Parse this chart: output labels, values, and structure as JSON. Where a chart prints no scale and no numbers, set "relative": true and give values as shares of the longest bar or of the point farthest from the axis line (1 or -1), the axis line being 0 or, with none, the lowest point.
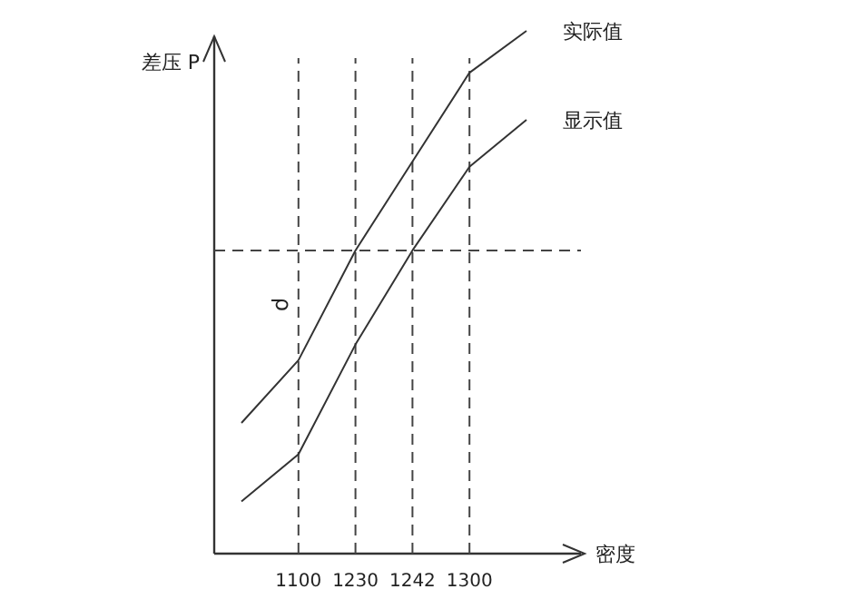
{
  "chart_data": {
    "type": "line",
    "relative": true,
    "xlabel": "密度",
    "ylabel": "差压 P",
    "categories": [
      null,
      "1100",
      "1230",
      "1242",
      "1300",
      null
    ],
    "series": [
      {
        "name": "实际值",
        "color": "#333333",
        "values": [
          0.25,
          0.37,
          0.58,
          0.75,
          0.92,
          1.0
        ]
      },
      {
        "name": "显示值",
        "color": "#333333",
        "values": [
          0.1,
          0.19,
          0.4,
          0.58,
          0.74,
          0.83
        ]
      }
    ],
    "ref_lines": [
      {
        "axis": "y",
        "value": 0.58,
        "line_style": "dashed"
      },
      {
        "axis": "x",
        "value": "1100",
        "line_style": "dashed"
      },
      {
        "axis": "x",
        "value": "1230",
        "line_style": "dashed"
      },
      {
        "axis": "x",
        "value": "1242",
        "line_style": "dashed"
      },
      {
        "axis": "x",
        "value": "1300",
        "line_style": "dashed"
      }
    ],
    "annotations": [
      "ρ"
    ],
    "line_style": "solid",
    "marker": "none",
    "grid": false,
    "legend": false
  }
}
